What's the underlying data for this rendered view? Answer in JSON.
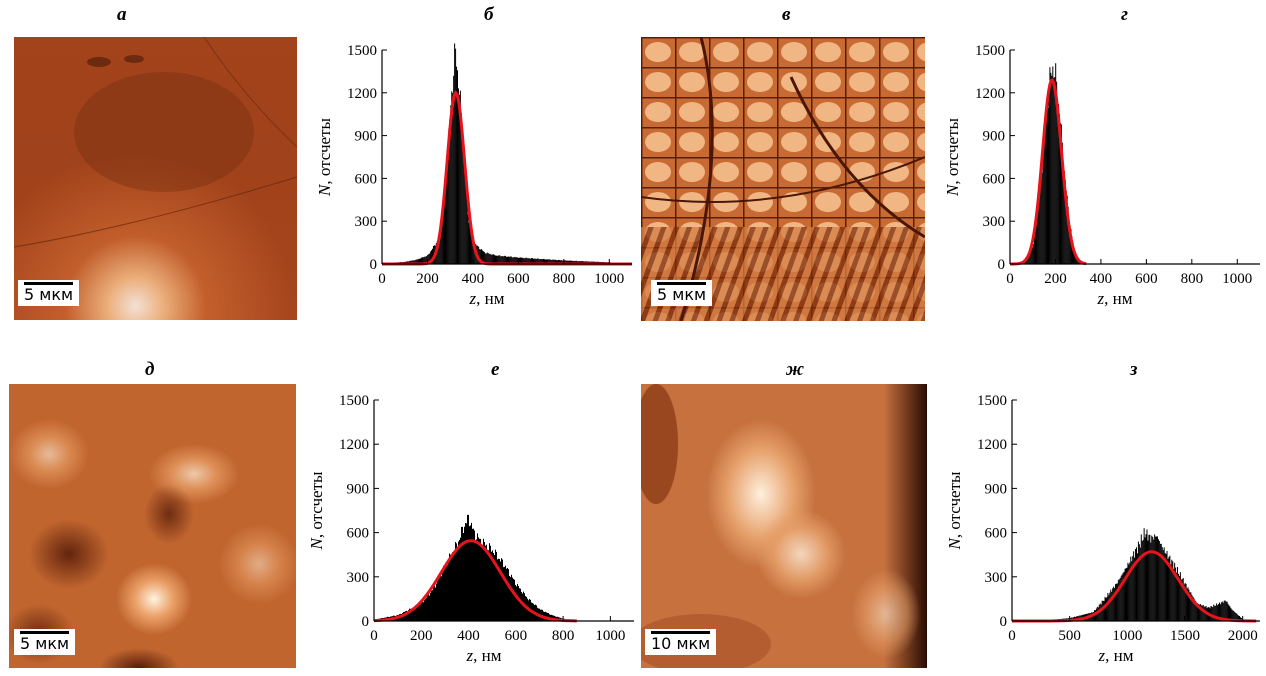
{
  "panels": {
    "a": {
      "letter": "а",
      "scale": "5 мкм"
    },
    "b": {
      "letter": "б"
    },
    "v": {
      "letter": "в",
      "scale": "5 мкм"
    },
    "g": {
      "letter": "г"
    },
    "d": {
      "letter": "д",
      "scale": "5 мкм"
    },
    "e": {
      "letter": "е"
    },
    "zh": {
      "letter": "ж",
      "scale": "10 мкм"
    },
    "z": {
      "letter": "з"
    }
  },
  "axis_text": {
    "ylabel_var": "N",
    "ylabel_rest": ", отсчеты",
    "xlabel_var": "z",
    "xlabel_rest": ", нм"
  },
  "colors": {
    "bars": "#000000",
    "fit": "#e8141b",
    "afm_dark": "#3a0e02",
    "afm_light": "#fff4e8"
  },
  "chart_data": [
    {
      "id": "b",
      "type": "bar",
      "ylim": [
        0,
        1500
      ],
      "xlim": [
        0,
        1100
      ],
      "xticks": [
        0,
        200,
        400,
        600,
        800,
        1000
      ],
      "yticks": [
        0,
        300,
        600,
        900,
        1200,
        1500
      ],
      "histogram": {
        "x": [
          0,
          50,
          100,
          150,
          200,
          250,
          280,
          300,
          320,
          340,
          360,
          380,
          400,
          450,
          500,
          600,
          700,
          800,
          900,
          1000,
          1080
        ],
        "y": [
          5,
          10,
          15,
          30,
          60,
          180,
          600,
          1100,
          1500,
          1200,
          700,
          300,
          150,
          80,
          60,
          45,
          35,
          25,
          18,
          12,
          0
        ]
      },
      "fit": {
        "type": "gaussian",
        "center": 325,
        "amplitude": 1200,
        "sigma": 38
      }
    },
    {
      "id": "g",
      "type": "bar",
      "ylim": [
        0,
        1500
      ],
      "xlim": [
        0,
        1100
      ],
      "xticks": [
        0,
        200,
        400,
        600,
        800,
        1000
      ],
      "yticks": [
        0,
        300,
        600,
        900,
        1200,
        1500
      ],
      "histogram": {
        "x": [
          0,
          50,
          100,
          130,
          150,
          170,
          185,
          200,
          220,
          240,
          260,
          280,
          300,
          320
        ],
        "y": [
          0,
          10,
          120,
          500,
          900,
          1250,
          1390,
          1300,
          1000,
          600,
          300,
          100,
          20,
          0
        ]
      },
      "fit": {
        "type": "gaussian",
        "center": 185,
        "amplitude": 1290,
        "sigma": 42
      }
    },
    {
      "id": "e",
      "type": "bar",
      "ylim": [
        0,
        1500
      ],
      "xlim": [
        0,
        1100
      ],
      "xticks": [
        0,
        200,
        400,
        600,
        800,
        1000
      ],
      "yticks": [
        0,
        300,
        600,
        900,
        1200,
        1500
      ],
      "histogram": {
        "x": [
          0,
          100,
          200,
          250,
          300,
          350,
          380,
          400,
          420,
          450,
          500,
          550,
          600,
          650,
          700,
          750,
          800,
          840
        ],
        "y": [
          10,
          40,
          120,
          220,
          380,
          520,
          650,
          700,
          600,
          540,
          480,
          380,
          250,
          150,
          80,
          40,
          15,
          0
        ]
      },
      "fit": {
        "type": "gaussian",
        "center": 410,
        "amplitude": 545,
        "sigma": 125
      }
    },
    {
      "id": "z",
      "type": "bar",
      "ylim": [
        0,
        1500
      ],
      "xlim": [
        0,
        2150
      ],
      "xticks": [
        0,
        500,
        1000,
        1500,
        2000
      ],
      "yticks": [
        0,
        300,
        600,
        900,
        1200,
        1500
      ],
      "histogram": {
        "x": [
          0,
          300,
          500,
          700,
          800,
          900,
          1000,
          1100,
          1150,
          1200,
          1250,
          1300,
          1400,
          1500,
          1600,
          1700,
          1800,
          1850,
          1900,
          2000,
          2100
        ],
        "y": [
          2,
          5,
          20,
          60,
          150,
          250,
          380,
          520,
          600,
          560,
          580,
          500,
          380,
          250,
          120,
          90,
          120,
          140,
          80,
          10,
          0
        ]
      },
      "fit": {
        "type": "gaussian",
        "center": 1210,
        "amplitude": 470,
        "sigma": 230
      }
    }
  ]
}
